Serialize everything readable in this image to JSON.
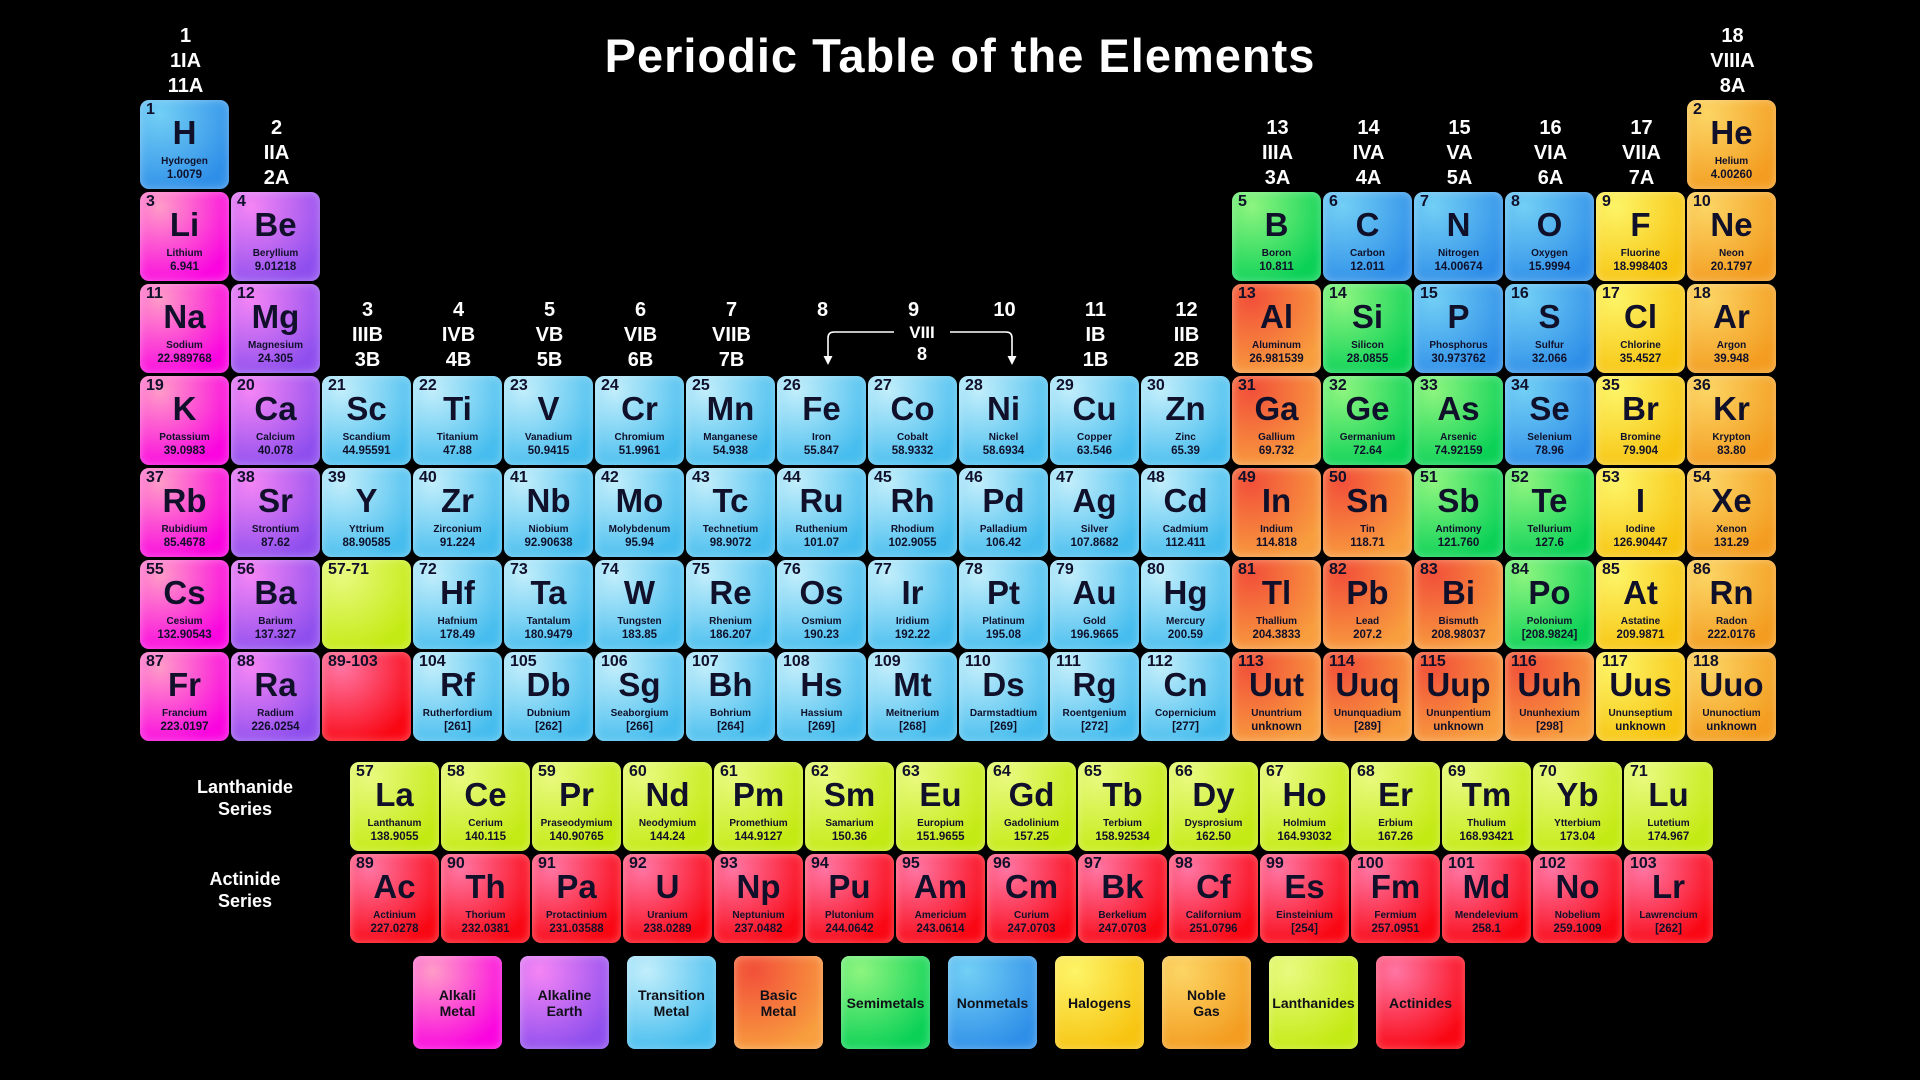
{
  "title": "Periodic Table of the Elements",
  "category_colors": {
    "alkali": [
      "#ff9cc8",
      "#fa05df"
    ],
    "alkaline": [
      "#f585f5",
      "#8f4fee"
    ],
    "transition": [
      "#c2eefb",
      "#46bdee"
    ],
    "basic": [
      "#f2503a",
      "#f89e3e"
    ],
    "semimetal": [
      "#8df57f",
      "#0bd157"
    ],
    "nonmetal": [
      "#72cff5",
      "#2f8fe8"
    ],
    "halogen": [
      "#fdf467",
      "#f7c411"
    ],
    "noble": [
      "#fcd564",
      "#f39c20"
    ],
    "lanthanide": [
      "#e9fa80",
      "#c3ea12"
    ],
    "actinide": [
      "#ff76a4",
      "#f90713"
    ]
  },
  "group_headers": [
    {
      "group": 1,
      "lines": "1\n1IA\n11A"
    },
    {
      "group": 2,
      "lines": "2\nIIA\n2A"
    },
    {
      "group": 3,
      "lines": "3\nIIIB\n3B"
    },
    {
      "group": 4,
      "lines": "4\nIVB\n4B"
    },
    {
      "group": 5,
      "lines": "5\nVB\n5B"
    },
    {
      "group": 6,
      "lines": "6\nVIB\n6B"
    },
    {
      "group": 7,
      "lines": "7\nVIIB\n7B"
    },
    {
      "group": 8,
      "lines": "8"
    },
    {
      "group": 9,
      "lines": "9"
    },
    {
      "group": 10,
      "lines": "10"
    },
    {
      "group": 11,
      "lines": "11\nIB\n1B"
    },
    {
      "group": 12,
      "lines": "12\nIIB\n2B"
    },
    {
      "group": 13,
      "lines": "13\nIIIA\n3A"
    },
    {
      "group": 14,
      "lines": "14\nIVA\n4A"
    },
    {
      "group": 15,
      "lines": "15\nVA\n5A"
    },
    {
      "group": 16,
      "lines": "16\nVIA\n6A"
    },
    {
      "group": 17,
      "lines": "17\nVIIA\n7A"
    },
    {
      "group": 18,
      "lines": "18\nVIIIA\n8A"
    }
  ],
  "viii_bracket": {
    "label": "VIII",
    "sub": "8"
  },
  "elements": [
    {
      "n": 1,
      "s": "H",
      "name": "Hydrogen",
      "m": "1.0079",
      "c": "nonmetal",
      "g": 1,
      "p": 1
    },
    {
      "n": 2,
      "s": "He",
      "name": "Helium",
      "m": "4.00260",
      "c": "noble",
      "g": 18,
      "p": 1
    },
    {
      "n": 3,
      "s": "Li",
      "name": "Lithium",
      "m": "6.941",
      "c": "alkali",
      "g": 1,
      "p": 2
    },
    {
      "n": 4,
      "s": "Be",
      "name": "Beryllium",
      "m": "9.01218",
      "c": "alkaline",
      "g": 2,
      "p": 2
    },
    {
      "n": 5,
      "s": "B",
      "name": "Boron",
      "m": "10.811",
      "c": "semimetal",
      "g": 13,
      "p": 2
    },
    {
      "n": 6,
      "s": "C",
      "name": "Carbon",
      "m": "12.011",
      "c": "nonmetal",
      "g": 14,
      "p": 2
    },
    {
      "n": 7,
      "s": "N",
      "name": "Nitrogen",
      "m": "14.00674",
      "c": "nonmetal",
      "g": 15,
      "p": 2
    },
    {
      "n": 8,
      "s": "O",
      "name": "Oxygen",
      "m": "15.9994",
      "c": "nonmetal",
      "g": 16,
      "p": 2
    },
    {
      "n": 9,
      "s": "F",
      "name": "Fluorine",
      "m": "18.998403",
      "c": "halogen",
      "g": 17,
      "p": 2
    },
    {
      "n": 10,
      "s": "Ne",
      "name": "Neon",
      "m": "20.1797",
      "c": "noble",
      "g": 18,
      "p": 2
    },
    {
      "n": 11,
      "s": "Na",
      "name": "Sodium",
      "m": "22.989768",
      "c": "alkali",
      "g": 1,
      "p": 3
    },
    {
      "n": 12,
      "s": "Mg",
      "name": "Magnesium",
      "m": "24.305",
      "c": "alkaline",
      "g": 2,
      "p": 3
    },
    {
      "n": 13,
      "s": "Al",
      "name": "Aluminum",
      "m": "26.981539",
      "c": "basic",
      "g": 13,
      "p": 3
    },
    {
      "n": 14,
      "s": "Si",
      "name": "Silicon",
      "m": "28.0855",
      "c": "semimetal",
      "g": 14,
      "p": 3
    },
    {
      "n": 15,
      "s": "P",
      "name": "Phosphorus",
      "m": "30.973762",
      "c": "nonmetal",
      "g": 15,
      "p": 3
    },
    {
      "n": 16,
      "s": "S",
      "name": "Sulfur",
      "m": "32.066",
      "c": "nonmetal",
      "g": 16,
      "p": 3
    },
    {
      "n": 17,
      "s": "Cl",
      "name": "Chlorine",
      "m": "35.4527",
      "c": "halogen",
      "g": 17,
      "p": 3
    },
    {
      "n": 18,
      "s": "Ar",
      "name": "Argon",
      "m": "39.948",
      "c": "noble",
      "g": 18,
      "p": 3
    },
    {
      "n": 19,
      "s": "K",
      "name": "Potassium",
      "m": "39.0983",
      "c": "alkali",
      "g": 1,
      "p": 4
    },
    {
      "n": 20,
      "s": "Ca",
      "name": "Calcium",
      "m": "40.078",
      "c": "alkaline",
      "g": 2,
      "p": 4
    },
    {
      "n": 21,
      "s": "Sc",
      "name": "Scandium",
      "m": "44.95591",
      "c": "transition",
      "g": 3,
      "p": 4
    },
    {
      "n": 22,
      "s": "Ti",
      "name": "Titanium",
      "m": "47.88",
      "c": "transition",
      "g": 4,
      "p": 4
    },
    {
      "n": 23,
      "s": "V",
      "name": "Vanadium",
      "m": "50.9415",
      "c": "transition",
      "g": 5,
      "p": 4
    },
    {
      "n": 24,
      "s": "Cr",
      "name": "Chromium",
      "m": "51.9961",
      "c": "transition",
      "g": 6,
      "p": 4
    },
    {
      "n": 25,
      "s": "Mn",
      "name": "Manganese",
      "m": "54.938",
      "c": "transition",
      "g": 7,
      "p": 4
    },
    {
      "n": 26,
      "s": "Fe",
      "name": "Iron",
      "m": "55.847",
      "c": "transition",
      "g": 8,
      "p": 4
    },
    {
      "n": 27,
      "s": "Co",
      "name": "Cobalt",
      "m": "58.9332",
      "c": "transition",
      "g": 9,
      "p": 4
    },
    {
      "n": 28,
      "s": "Ni",
      "name": "Nickel",
      "m": "58.6934",
      "c": "transition",
      "g": 10,
      "p": 4
    },
    {
      "n": 29,
      "s": "Cu",
      "name": "Copper",
      "m": "63.546",
      "c": "transition",
      "g": 11,
      "p": 4
    },
    {
      "n": 30,
      "s": "Zn",
      "name": "Zinc",
      "m": "65.39",
      "c": "transition",
      "g": 12,
      "p": 4
    },
    {
      "n": 31,
      "s": "Ga",
      "name": "Gallium",
      "m": "69.732",
      "c": "basic",
      "g": 13,
      "p": 4
    },
    {
      "n": 32,
      "s": "Ge",
      "name": "Germanium",
      "m": "72.64",
      "c": "semimetal",
      "g": 14,
      "p": 4
    },
    {
      "n": 33,
      "s": "As",
      "name": "Arsenic",
      "m": "74.92159",
      "c": "semimetal",
      "g": 15,
      "p": 4
    },
    {
      "n": 34,
      "s": "Se",
      "name": "Selenium",
      "m": "78.96",
      "c": "nonmetal",
      "g": 16,
      "p": 4
    },
    {
      "n": 35,
      "s": "Br",
      "name": "Bromine",
      "m": "79.904",
      "c": "halogen",
      "g": 17,
      "p": 4
    },
    {
      "n": 36,
      "s": "Kr",
      "name": "Krypton",
      "m": "83.80",
      "c": "noble",
      "g": 18,
      "p": 4
    },
    {
      "n": 37,
      "s": "Rb",
      "name": "Rubidium",
      "m": "85.4678",
      "c": "alkali",
      "g": 1,
      "p": 5
    },
    {
      "n": 38,
      "s": "Sr",
      "name": "Strontium",
      "m": "87.62",
      "c": "alkaline",
      "g": 2,
      "p": 5
    },
    {
      "n": 39,
      "s": "Y",
      "name": "Yttrium",
      "m": "88.90585",
      "c": "transition",
      "g": 3,
      "p": 5
    },
    {
      "n": 40,
      "s": "Zr",
      "name": "Zirconium",
      "m": "91.224",
      "c": "transition",
      "g": 4,
      "p": 5
    },
    {
      "n": 41,
      "s": "Nb",
      "name": "Niobium",
      "m": "92.90638",
      "c": "transition",
      "g": 5,
      "p": 5
    },
    {
      "n": 42,
      "s": "Mo",
      "name": "Molybdenum",
      "m": "95.94",
      "c": "transition",
      "g": 6,
      "p": 5
    },
    {
      "n": 43,
      "s": "Tc",
      "name": "Technetium",
      "m": "98.9072",
      "c": "transition",
      "g": 7,
      "p": 5
    },
    {
      "n": 44,
      "s": "Ru",
      "name": "Ruthenium",
      "m": "101.07",
      "c": "transition",
      "g": 8,
      "p": 5
    },
    {
      "n": 45,
      "s": "Rh",
      "name": "Rhodium",
      "m": "102.9055",
      "c": "transition",
      "g": 9,
      "p": 5
    },
    {
      "n": 46,
      "s": "Pd",
      "name": "Palladium",
      "m": "106.42",
      "c": "transition",
      "g": 10,
      "p": 5
    },
    {
      "n": 47,
      "s": "Ag",
      "name": "Silver",
      "m": "107.8682",
      "c": "transition",
      "g": 11,
      "p": 5
    },
    {
      "n": 48,
      "s": "Cd",
      "name": "Cadmium",
      "m": "112.411",
      "c": "transition",
      "g": 12,
      "p": 5
    },
    {
      "n": 49,
      "s": "In",
      "name": "Indium",
      "m": "114.818",
      "c": "basic",
      "g": 13,
      "p": 5
    },
    {
      "n": 50,
      "s": "Sn",
      "name": "Tin",
      "m": "118.71",
      "c": "basic",
      "g": 14,
      "p": 5
    },
    {
      "n": 51,
      "s": "Sb",
      "name": "Antimony",
      "m": "121.760",
      "c": "semimetal",
      "g": 15,
      "p": 5
    },
    {
      "n": 52,
      "s": "Te",
      "name": "Tellurium",
      "m": "127.6",
      "c": "semimetal",
      "g": 16,
      "p": 5
    },
    {
      "n": 53,
      "s": "I",
      "name": "Iodine",
      "m": "126.90447",
      "c": "halogen",
      "g": 17,
      "p": 5
    },
    {
      "n": 54,
      "s": "Xe",
      "name": "Xenon",
      "m": "131.29",
      "c": "noble",
      "g": 18,
      "p": 5
    },
    {
      "n": 55,
      "s": "Cs",
      "name": "Cesium",
      "m": "132.90543",
      "c": "alkali",
      "g": 1,
      "p": 6
    },
    {
      "n": 56,
      "s": "Ba",
      "name": "Barium",
      "m": "137.327",
      "c": "alkaline",
      "g": 2,
      "p": 6
    },
    {
      "n": 72,
      "s": "Hf",
      "name": "Hafnium",
      "m": "178.49",
      "c": "transition",
      "g": 4,
      "p": 6
    },
    {
      "n": 73,
      "s": "Ta",
      "name": "Tantalum",
      "m": "180.9479",
      "c": "transition",
      "g": 5,
      "p": 6
    },
    {
      "n": 74,
      "s": "W",
      "name": "Tungsten",
      "m": "183.85",
      "c": "transition",
      "g": 6,
      "p": 6
    },
    {
      "n": 75,
      "s": "Re",
      "name": "Rhenium",
      "m": "186.207",
      "c": "transition",
      "g": 7,
      "p": 6
    },
    {
      "n": 76,
      "s": "Os",
      "name": "Osmium",
      "m": "190.23",
      "c": "transition",
      "g": 8,
      "p": 6
    },
    {
      "n": 77,
      "s": "Ir",
      "name": "Iridium",
      "m": "192.22",
      "c": "transition",
      "g": 9,
      "p": 6
    },
    {
      "n": 78,
      "s": "Pt",
      "name": "Platinum",
      "m": "195.08",
      "c": "transition",
      "g": 10,
      "p": 6
    },
    {
      "n": 79,
      "s": "Au",
      "name": "Gold",
      "m": "196.9665",
      "c": "transition",
      "g": 11,
      "p": 6
    },
    {
      "n": 80,
      "s": "Hg",
      "name": "Mercury",
      "m": "200.59",
      "c": "transition",
      "g": 12,
      "p": 6
    },
    {
      "n": 81,
      "s": "Tl",
      "name": "Thallium",
      "m": "204.3833",
      "c": "basic",
      "g": 13,
      "p": 6
    },
    {
      "n": 82,
      "s": "Pb",
      "name": "Lead",
      "m": "207.2",
      "c": "basic",
      "g": 14,
      "p": 6
    },
    {
      "n": 83,
      "s": "Bi",
      "name": "Bismuth",
      "m": "208.98037",
      "c": "basic",
      "g": 15,
      "p": 6
    },
    {
      "n": 84,
      "s": "Po",
      "name": "Polonium",
      "m": "[208.9824]",
      "c": "semimetal",
      "g": 16,
      "p": 6
    },
    {
      "n": 85,
      "s": "At",
      "name": "Astatine",
      "m": "209.9871",
      "c": "halogen",
      "g": 17,
      "p": 6
    },
    {
      "n": 86,
      "s": "Rn",
      "name": "Radon",
      "m": "222.0176",
      "c": "noble",
      "g": 18,
      "p": 6
    },
    {
      "n": 87,
      "s": "Fr",
      "name": "Francium",
      "m": "223.0197",
      "c": "alkali",
      "g": 1,
      "p": 7
    },
    {
      "n": 88,
      "s": "Ra",
      "name": "Radium",
      "m": "226.0254",
      "c": "alkaline",
      "g": 2,
      "p": 7
    },
    {
      "n": 104,
      "s": "Rf",
      "name": "Rutherfordium",
      "m": "[261]",
      "c": "transition",
      "g": 4,
      "p": 7
    },
    {
      "n": 105,
      "s": "Db",
      "name": "Dubnium",
      "m": "[262]",
      "c": "transition",
      "g": 5,
      "p": 7
    },
    {
      "n": 106,
      "s": "Sg",
      "name": "Seaborgium",
      "m": "[266]",
      "c": "transition",
      "g": 6,
      "p": 7
    },
    {
      "n": 107,
      "s": "Bh",
      "name": "Bohrium",
      "m": "[264]",
      "c": "transition",
      "g": 7,
      "p": 7
    },
    {
      "n": 108,
      "s": "Hs",
      "name": "Hassium",
      "m": "[269]",
      "c": "transition",
      "g": 8,
      "p": 7
    },
    {
      "n": 109,
      "s": "Mt",
      "name": "Meitnerium",
      "m": "[268]",
      "c": "transition",
      "g": 9,
      "p": 7
    },
    {
      "n": 110,
      "s": "Ds",
      "name": "Darmstadtium",
      "m": "[269]",
      "c": "transition",
      "g": 10,
      "p": 7
    },
    {
      "n": 111,
      "s": "Rg",
      "name": "Roentgenium",
      "m": "[272]",
      "c": "transition",
      "g": 11,
      "p": 7
    },
    {
      "n": 112,
      "s": "Cn",
      "name": "Copernicium",
      "m": "[277]",
      "c": "transition",
      "g": 12,
      "p": 7
    },
    {
      "n": 113,
      "s": "Uut",
      "name": "Ununtrium",
      "m": "unknown",
      "c": "basic",
      "g": 13,
      "p": 7
    },
    {
      "n": 114,
      "s": "Uuq",
      "name": "Ununquadium",
      "m": "[289]",
      "c": "basic",
      "g": 14,
      "p": 7
    },
    {
      "n": 115,
      "s": "Uup",
      "name": "Ununpentium",
      "m": "unknown",
      "c": "basic",
      "g": 15,
      "p": 7
    },
    {
      "n": 116,
      "s": "Uuh",
      "name": "Ununhexium",
      "m": "[298]",
      "c": "basic",
      "g": 16,
      "p": 7
    },
    {
      "n": 117,
      "s": "Uus",
      "name": "Ununseptium",
      "m": "unknown",
      "c": "halogen",
      "g": 17,
      "p": 7
    },
    {
      "n": 118,
      "s": "Uuo",
      "name": "Ununoctium",
      "m": "unknown",
      "c": "noble",
      "g": 18,
      "p": 7
    }
  ],
  "placeholders": [
    {
      "label": "57-71",
      "c": "lanthanide",
      "g": 3,
      "p": 6
    },
    {
      "label": "89-103",
      "c": "actinide",
      "g": 3,
      "p": 7
    }
  ],
  "series": {
    "lanthanide_label": "Lanthanide\nSeries",
    "actinide_label": "Actinide\nSeries",
    "lanthanides": [
      {
        "n": 57,
        "s": "La",
        "name": "Lanthanum",
        "m": "138.9055",
        "c": "lanthanide"
      },
      {
        "n": 58,
        "s": "Ce",
        "name": "Cerium",
        "m": "140.115",
        "c": "lanthanide"
      },
      {
        "n": 59,
        "s": "Pr",
        "name": "Praseodymium",
        "m": "140.90765",
        "c": "lanthanide"
      },
      {
        "n": 60,
        "s": "Nd",
        "name": "Neodymium",
        "m": "144.24",
        "c": "lanthanide"
      },
      {
        "n": 61,
        "s": "Pm",
        "name": "Promethium",
        "m": "144.9127",
        "c": "lanthanide"
      },
      {
        "n": 62,
        "s": "Sm",
        "name": "Samarium",
        "m": "150.36",
        "c": "lanthanide"
      },
      {
        "n": 63,
        "s": "Eu",
        "name": "Europium",
        "m": "151.9655",
        "c": "lanthanide"
      },
      {
        "n": 64,
        "s": "Gd",
        "name": "Gadolinium",
        "m": "157.25",
        "c": "lanthanide"
      },
      {
        "n": 65,
        "s": "Tb",
        "name": "Terbium",
        "m": "158.92534",
        "c": "lanthanide"
      },
      {
        "n": 66,
        "s": "Dy",
        "name": "Dysprosium",
        "m": "162.50",
        "c": "lanthanide"
      },
      {
        "n": 67,
        "s": "Ho",
        "name": "Holmium",
        "m": "164.93032",
        "c": "lanthanide"
      },
      {
        "n": 68,
        "s": "Er",
        "name": "Erbium",
        "m": "167.26",
        "c": "lanthanide"
      },
      {
        "n": 69,
        "s": "Tm",
        "name": "Thulium",
        "m": "168.93421",
        "c": "lanthanide"
      },
      {
        "n": 70,
        "s": "Yb",
        "name": "Ytterbium",
        "m": "173.04",
        "c": "lanthanide"
      },
      {
        "n": 71,
        "s": "Lu",
        "name": "Lutetium",
        "m": "174.967",
        "c": "lanthanide"
      }
    ],
    "actinides": [
      {
        "n": 89,
        "s": "Ac",
        "name": "Actinium",
        "m": "227.0278",
        "c": "actinide"
      },
      {
        "n": 90,
        "s": "Th",
        "name": "Thorium",
        "m": "232.0381",
        "c": "actinide"
      },
      {
        "n": 91,
        "s": "Pa",
        "name": "Protactinium",
        "m": "231.03588",
        "c": "actinide"
      },
      {
        "n": 92,
        "s": "U",
        "name": "Uranium",
        "m": "238.0289",
        "c": "actinide"
      },
      {
        "n": 93,
        "s": "Np",
        "name": "Neptunium",
        "m": "237.0482",
        "c": "actinide"
      },
      {
        "n": 94,
        "s": "Pu",
        "name": "Plutonium",
        "m": "244.0642",
        "c": "actinide"
      },
      {
        "n": 95,
        "s": "Am",
        "name": "Americium",
        "m": "243.0614",
        "c": "actinide"
      },
      {
        "n": 96,
        "s": "Cm",
        "name": "Curium",
        "m": "247.0703",
        "c": "actinide"
      },
      {
        "n": 97,
        "s": "Bk",
        "name": "Berkelium",
        "m": "247.0703",
        "c": "actinide"
      },
      {
        "n": 98,
        "s": "Cf",
        "name": "Californium",
        "m": "251.0796",
        "c": "actinide"
      },
      {
        "n": 99,
        "s": "Es",
        "name": "Einsteinium",
        "m": "[254]",
        "c": "actinide"
      },
      {
        "n": 100,
        "s": "Fm",
        "name": "Fermium",
        "m": "257.0951",
        "c": "actinide"
      },
      {
        "n": 101,
        "s": "Md",
        "name": "Mendelevium",
        "m": "258.1",
        "c": "actinide"
      },
      {
        "n": 102,
        "s": "No",
        "name": "Nobelium",
        "m": "259.1009",
        "c": "actinide"
      },
      {
        "n": 103,
        "s": "Lr",
        "name": "Lawrencium",
        "m": "[262]",
        "c": "actinide"
      }
    ]
  },
  "legend": [
    {
      "label": "Alkali\nMetal",
      "c": "alkali"
    },
    {
      "label": "Alkaline\nEarth",
      "c": "alkaline"
    },
    {
      "label": "Transition\nMetal",
      "c": "transition"
    },
    {
      "label": "Basic\nMetal",
      "c": "basic"
    },
    {
      "label": "Semimetals",
      "c": "semimetal"
    },
    {
      "label": "Nonmetals",
      "c": "nonmetal"
    },
    {
      "label": "Halogens",
      "c": "halogen"
    },
    {
      "label": "Noble\nGas",
      "c": "noble"
    },
    {
      "label": "Lanthanides",
      "c": "lanthanide"
    },
    {
      "label": "Actinides",
      "c": "actinide"
    }
  ]
}
